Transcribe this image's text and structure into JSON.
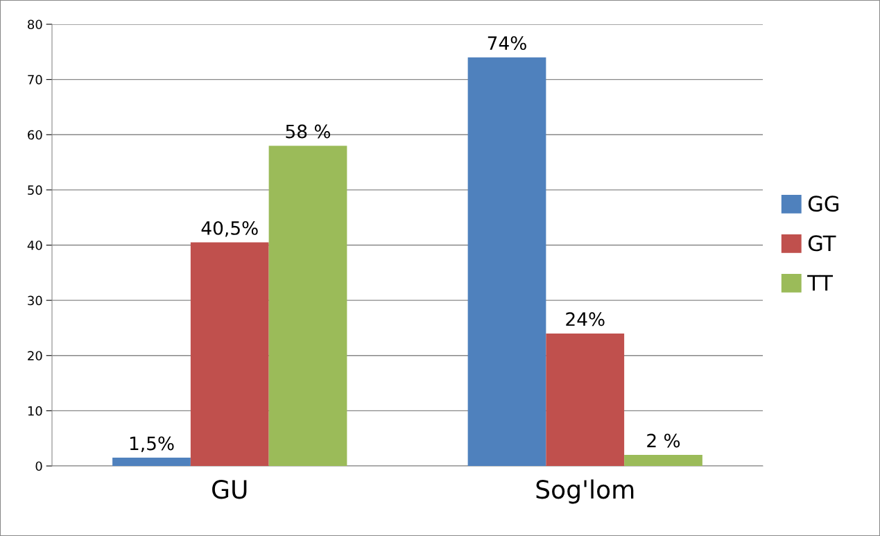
{
  "chart_data": {
    "type": "bar",
    "categories": [
      "GU",
      "Sog'lom"
    ],
    "series": [
      {
        "name": "GG",
        "color": "#4f81bd",
        "values": [
          1.5,
          74
        ],
        "value_labels": [
          "1,5%",
          "74%"
        ]
      },
      {
        "name": "GT",
        "color": "#c0504d",
        "values": [
          40.5,
          24
        ],
        "value_labels": [
          "40,5%",
          "24%"
        ]
      },
      {
        "name": "TT",
        "color": "#9bbb59",
        "values": [
          58,
          2
        ],
        "value_labels": [
          "58 %",
          "2 %"
        ]
      }
    ],
    "ylim": [
      0,
      80
    ],
    "yticks": [
      0,
      10,
      20,
      30,
      40,
      50,
      60,
      70,
      80
    ],
    "grid": "y",
    "legend": "right"
  }
}
